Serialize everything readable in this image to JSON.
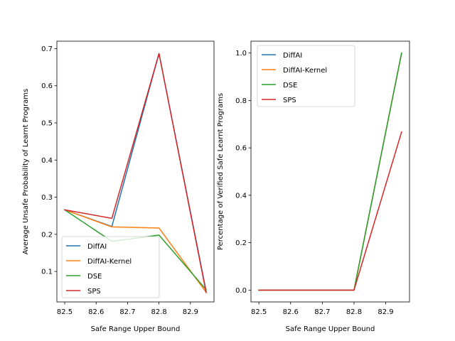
{
  "chart_data": [
    {
      "type": "line",
      "xlabel": "Safe Range Upper Bound",
      "ylabel": "Average Unsafe Probability of Learnt Programs",
      "xlim": [
        82.475,
        82.975
      ],
      "ylim": [
        0.018,
        0.72
      ],
      "xticks": [
        82.5,
        82.6,
        82.7,
        82.8,
        82.9
      ],
      "xtick_labels": [
        "82.5",
        "82.6",
        "82.7",
        "82.8",
        "82.9"
      ],
      "yticks": [
        0.1,
        0.2,
        0.3,
        0.4,
        0.5,
        0.6,
        0.7
      ],
      "ytick_labels": [
        "0.1",
        "0.2",
        "0.3",
        "0.4",
        "0.5",
        "0.6",
        "0.7"
      ],
      "grid": false,
      "legend_position": "lower-left",
      "series": [
        {
          "name": "DiffAI",
          "color": "#1f77b4",
          "x": [
            82.5,
            82.65,
            82.8,
            82.95
          ],
          "y": [
            0.266,
            0.221,
            0.687,
            0.047
          ]
        },
        {
          "name": "DiffAI-Kernel",
          "color": "#ff7f0e",
          "x": [
            82.5,
            82.65,
            82.8,
            82.95
          ],
          "y": [
            0.266,
            0.22,
            0.217,
            0.044
          ]
        },
        {
          "name": "DSE",
          "color": "#2ca02c",
          "x": [
            82.5,
            82.65,
            82.8,
            82.95
          ],
          "y": [
            0.266,
            0.181,
            0.198,
            0.051
          ]
        },
        {
          "name": "SPS",
          "color": "#d62728",
          "x": [
            82.5,
            82.65,
            82.8,
            82.95
          ],
          "y": [
            0.266,
            0.243,
            0.687,
            0.043
          ]
        }
      ]
    },
    {
      "type": "line",
      "xlabel": "Safe Range Upper Bound",
      "ylabel": "Percentage of Verified Safe Learnt Programs",
      "xlim": [
        82.475,
        82.975
      ],
      "ylim": [
        -0.05,
        1.05
      ],
      "xticks": [
        82.5,
        82.6,
        82.7,
        82.8,
        82.9
      ],
      "xtick_labels": [
        "82.5",
        "82.6",
        "82.7",
        "82.8",
        "82.9"
      ],
      "yticks": [
        0.0,
        0.2,
        0.4,
        0.6,
        0.8,
        1.0
      ],
      "ytick_labels": [
        "0.0",
        "0.2",
        "0.4",
        "0.6",
        "0.8",
        "1.0"
      ],
      "grid": false,
      "legend_position": "upper-left",
      "series": [
        {
          "name": "DiffAI",
          "color": "#1f77b4",
          "x": [
            82.5,
            82.65,
            82.8,
            82.95
          ],
          "y": [
            0.0,
            0.0,
            0.0,
            1.0
          ]
        },
        {
          "name": "DiffAI-Kernel",
          "color": "#ff7f0e",
          "x": [
            82.5,
            82.65,
            82.8,
            82.95
          ],
          "y": [
            0.0,
            0.0,
            0.0,
            1.0
          ]
        },
        {
          "name": "DSE",
          "color": "#2ca02c",
          "x": [
            82.5,
            82.65,
            82.8,
            82.95
          ],
          "y": [
            0.0,
            0.0,
            0.0,
            1.0
          ]
        },
        {
          "name": "SPS",
          "color": "#d62728",
          "x": [
            82.5,
            82.65,
            82.8,
            82.95
          ],
          "y": [
            0.0,
            0.0,
            0.0,
            0.667
          ]
        }
      ]
    }
  ]
}
